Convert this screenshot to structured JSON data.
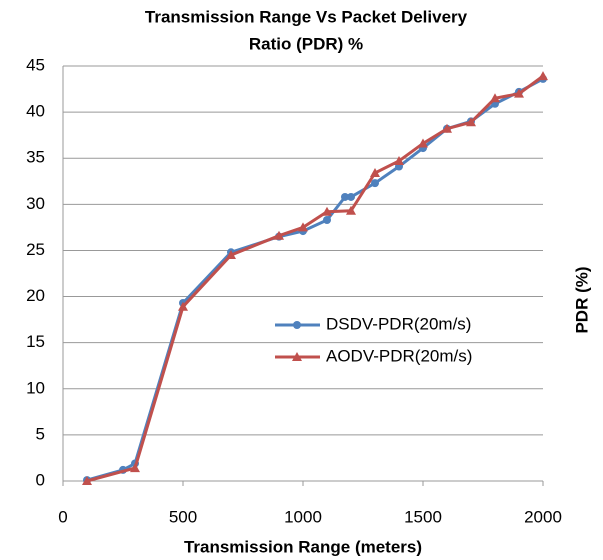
{
  "chart_data": {
    "type": "line",
    "title": [
      "Transmission Range Vs Packet Delivery",
      "Ratio (PDR) %"
    ],
    "x_label": "Transmission Range (meters)",
    "y_label": "PDR (%)",
    "xlim": [
      0,
      2000
    ],
    "xticks": [
      0,
      500,
      1000,
      1500,
      2000
    ],
    "ylim": [
      0,
      45
    ],
    "yticks": [
      0,
      5,
      10,
      15,
      20,
      25,
      30,
      35,
      40,
      45
    ],
    "grid": true,
    "legend": "right",
    "series": [
      {
        "name": "DSDV-PDR(20m/s)",
        "color": "#4f81bd",
        "marker": "circle",
        "x": [
          100,
          250,
          300,
          500,
          700,
          900,
          1000,
          1100,
          1175,
          1200,
          1300,
          1400,
          1500,
          1600,
          1700,
          1800,
          1900,
          2000
        ],
        "values": [
          0.1,
          1.2,
          1.9,
          19.3,
          24.8,
          26.5,
          27.1,
          28.3,
          30.8,
          30.8,
          32.3,
          34.1,
          36.1,
          38.2,
          39.0,
          40.9,
          42.2,
          43.6
        ]
      },
      {
        "name": "AODV-PDR(20m/s)",
        "color": "#c0504d",
        "marker": "triangle",
        "x": [
          100,
          300,
          500,
          700,
          900,
          1000,
          1100,
          1200,
          1300,
          1400,
          1500,
          1600,
          1700,
          1800,
          1900,
          2000
        ],
        "values": [
          0,
          1.4,
          18.9,
          24.5,
          26.6,
          27.5,
          29.2,
          29.3,
          33.4,
          34.7,
          36.6,
          38.2,
          38.9,
          41.5,
          42.0,
          43.9
        ]
      }
    ]
  }
}
